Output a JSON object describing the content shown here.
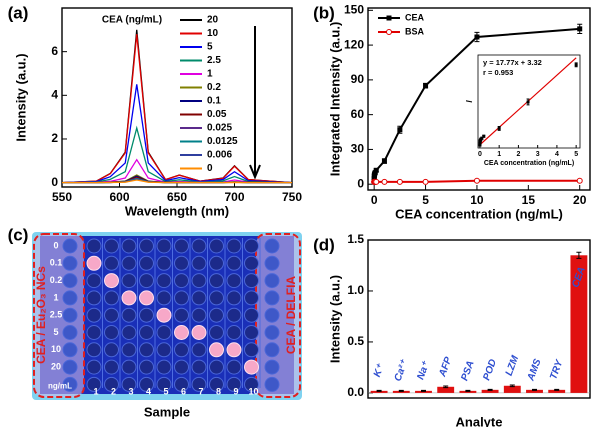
{
  "chart_data": [
    {
      "type": "line",
      "panel_label": "(a)",
      "xlabel": "Wavelength (nm)",
      "ylabel": "Intensity (a.u.)",
      "legend_title": "CEA (ng/mL)",
      "xlim": [
        550,
        750
      ],
      "xticks": [
        550,
        600,
        650,
        700,
        750
      ],
      "ylim": [
        -0.2,
        8
      ],
      "yticks": [
        0,
        2,
        4,
        6
      ],
      "x": [
        550,
        580,
        592,
        605,
        615,
        625,
        640,
        652,
        670,
        690,
        700,
        712,
        750
      ],
      "series": [
        {
          "name": "20",
          "color": "#000000",
          "values": [
            0,
            0.07,
            0.42,
            1.4,
            7.0,
            1.4,
            0.14,
            0.35,
            0.07,
            0.21,
            0.77,
            0.14,
            0
          ]
        },
        {
          "name": "10",
          "color": "#e00000",
          "values": [
            0,
            0.07,
            0.41,
            1.36,
            6.8,
            1.36,
            0.14,
            0.34,
            0.07,
            0.2,
            0.75,
            0.14,
            0
          ]
        },
        {
          "name": "5",
          "color": "#0000ee",
          "values": [
            0,
            0.05,
            0.27,
            0.9,
            4.5,
            0.9,
            0.09,
            0.23,
            0.05,
            0.14,
            0.5,
            0.09,
            0
          ]
        },
        {
          "name": "2.5",
          "color": "#008b6b",
          "values": [
            0,
            0.03,
            0.15,
            0.5,
            2.5,
            0.5,
            0.05,
            0.13,
            0.03,
            0.08,
            0.28,
            0.05,
            0
          ]
        },
        {
          "name": "1",
          "color": "#e000e0",
          "values": [
            0,
            0.01,
            0.06,
            0.21,
            1.05,
            0.21,
            0.02,
            0.05,
            0.01,
            0.03,
            0.12,
            0.02,
            0
          ]
        },
        {
          "name": "0.2",
          "color": "#808000",
          "values": [
            0,
            0,
            0.02,
            0.07,
            0.35,
            0.07,
            0.01,
            0.02,
            0,
            0.01,
            0.04,
            0.01,
            0
          ]
        },
        {
          "name": "0.1",
          "color": "#000080",
          "values": [
            0,
            0,
            0.02,
            0.06,
            0.3,
            0.06,
            0.01,
            0.02,
            0,
            0.01,
            0.03,
            0.01,
            0
          ]
        },
        {
          "name": "0.05",
          "color": "#800000",
          "values": [
            0,
            0,
            0.02,
            0.05,
            0.25,
            0.05,
            0.01,
            0.01,
            0,
            0.01,
            0.03,
            0.01,
            0
          ]
        },
        {
          "name": "0.025",
          "color": "#5b2a8c",
          "values": [
            0,
            0,
            0.01,
            0.04,
            0.2,
            0.04,
            0,
            0.01,
            0,
            0.01,
            0.02,
            0,
            0
          ]
        },
        {
          "name": "0.0125",
          "color": "#00808a",
          "values": [
            0,
            0,
            0.01,
            0.04,
            0.18,
            0.04,
            0,
            0.01,
            0,
            0.01,
            0.02,
            0,
            0
          ]
        },
        {
          "name": "0.006",
          "color": "#2f3f9f",
          "values": [
            0,
            0,
            0.01,
            0.03,
            0.15,
            0.03,
            0,
            0.01,
            0,
            0,
            0.02,
            0,
            0
          ]
        },
        {
          "name": "0",
          "color": "#ff8c00",
          "values": [
            0,
            0,
            0.01,
            0.02,
            0.12,
            0.02,
            0,
            0.01,
            0,
            0,
            0.01,
            0,
            0
          ]
        }
      ]
    },
    {
      "type": "line",
      "panel_label": "(b)",
      "xlabel": "CEA concentration (ng/mL)",
      "ylabel": "Integrated Intensity (a.u.)",
      "xlim": [
        -0.6,
        21
      ],
      "xticks": [
        0,
        5,
        10,
        15,
        20
      ],
      "ylim": [
        -5,
        152
      ],
      "yticks": [
        0,
        30,
        60,
        90,
        120,
        150
      ],
      "x": [
        0,
        0.006,
        0.0125,
        0.025,
        0.05,
        0.1,
        0.2,
        1,
        2.5,
        5,
        10,
        20
      ],
      "series": [
        {
          "name": "CEA",
          "color": "#000000",
          "marker": "square",
          "values": [
            3,
            5,
            7,
            8,
            9,
            10,
            12,
            20,
            47,
            85,
            127,
            134
          ],
          "errors": [
            1,
            1,
            1,
            1,
            1,
            1,
            1,
            2,
            3,
            2,
            4,
            4
          ]
        },
        {
          "name": "BSA",
          "color": "#e00000",
          "marker": "circle-open",
          "values": [
            2,
            2,
            2,
            2,
            2,
            2,
            2,
            2,
            2,
            2,
            3,
            3
          ],
          "errors": [
            1,
            1,
            1,
            1,
            1,
            1,
            1,
            1,
            1,
            1,
            1,
            1
          ]
        }
      ]
    },
    {
      "type": "scatter",
      "xlabel": "CEA concentration (ng/mL)",
      "ylabel": "I",
      "color": "#000000",
      "fit_color": "#e00000",
      "annotations": [
        "y = 17.77x + 3.32",
        "r = 0.953"
      ],
      "xlim": [
        -0.1,
        5.2
      ],
      "xticks": [
        0,
        1,
        2,
        3,
        4,
        5
      ],
      "ylim": [
        0,
        95
      ],
      "x": [
        0,
        0.006,
        0.0125,
        0.025,
        0.05,
        0.1,
        0.2,
        1,
        2.5,
        5
      ],
      "values": [
        3,
        5,
        7,
        8,
        9,
        10,
        12,
        20,
        47,
        85
      ],
      "errors": [
        1,
        1,
        1,
        1,
        1,
        1,
        1,
        2,
        3,
        2
      ],
      "fit_line": {
        "x": [
          0,
          5
        ],
        "y": [
          3.32,
          92.17
        ]
      }
    },
    {
      "type": "bar",
      "panel_label": "(d)",
      "xlabel": "Analyte",
      "ylabel": "Intensity (a.u.)",
      "color": "#e01010",
      "label_color": "#2f4fd0",
      "ylim": [
        -0.05,
        1.5
      ],
      "yticks": [
        {
          "value": 0,
          "label": "0.0"
        },
        {
          "value": 0.5,
          "label": "0.5"
        },
        {
          "value": 1,
          "label": "1.0"
        },
        {
          "value": 1.5,
          "label": "1.5"
        }
      ],
      "categories": [
        "K⁺",
        "Ca²⁺",
        "Na⁺",
        "AFP",
        "PSA",
        "POD",
        "LZM",
        "AMS",
        "TRY",
        "CEA"
      ],
      "values": [
        0.02,
        0.02,
        0.02,
        0.06,
        0.02,
        0.03,
        0.07,
        0.03,
        0.03,
        1.35
      ],
      "errors": [
        0.005,
        0.005,
        0.005,
        0.008,
        0.005,
        0.005,
        0.008,
        0.005,
        0.005,
        0.03
      ]
    }
  ],
  "panel_c": {
    "panel_label": "(c)",
    "row_labels": [
      "0",
      "0.1",
      "0.2",
      "1",
      "2.5",
      "5",
      "10",
      "20"
    ],
    "unit": "ng/mL",
    "column_labels": [
      "1",
      "2",
      "3",
      "4",
      "5",
      "6",
      "7",
      "8",
      "9",
      "10"
    ],
    "left_label": "CEA / Eu₂O₃ NCs",
    "right_label": "CEA / DELFIA",
    "xlabel": "Sample"
  }
}
